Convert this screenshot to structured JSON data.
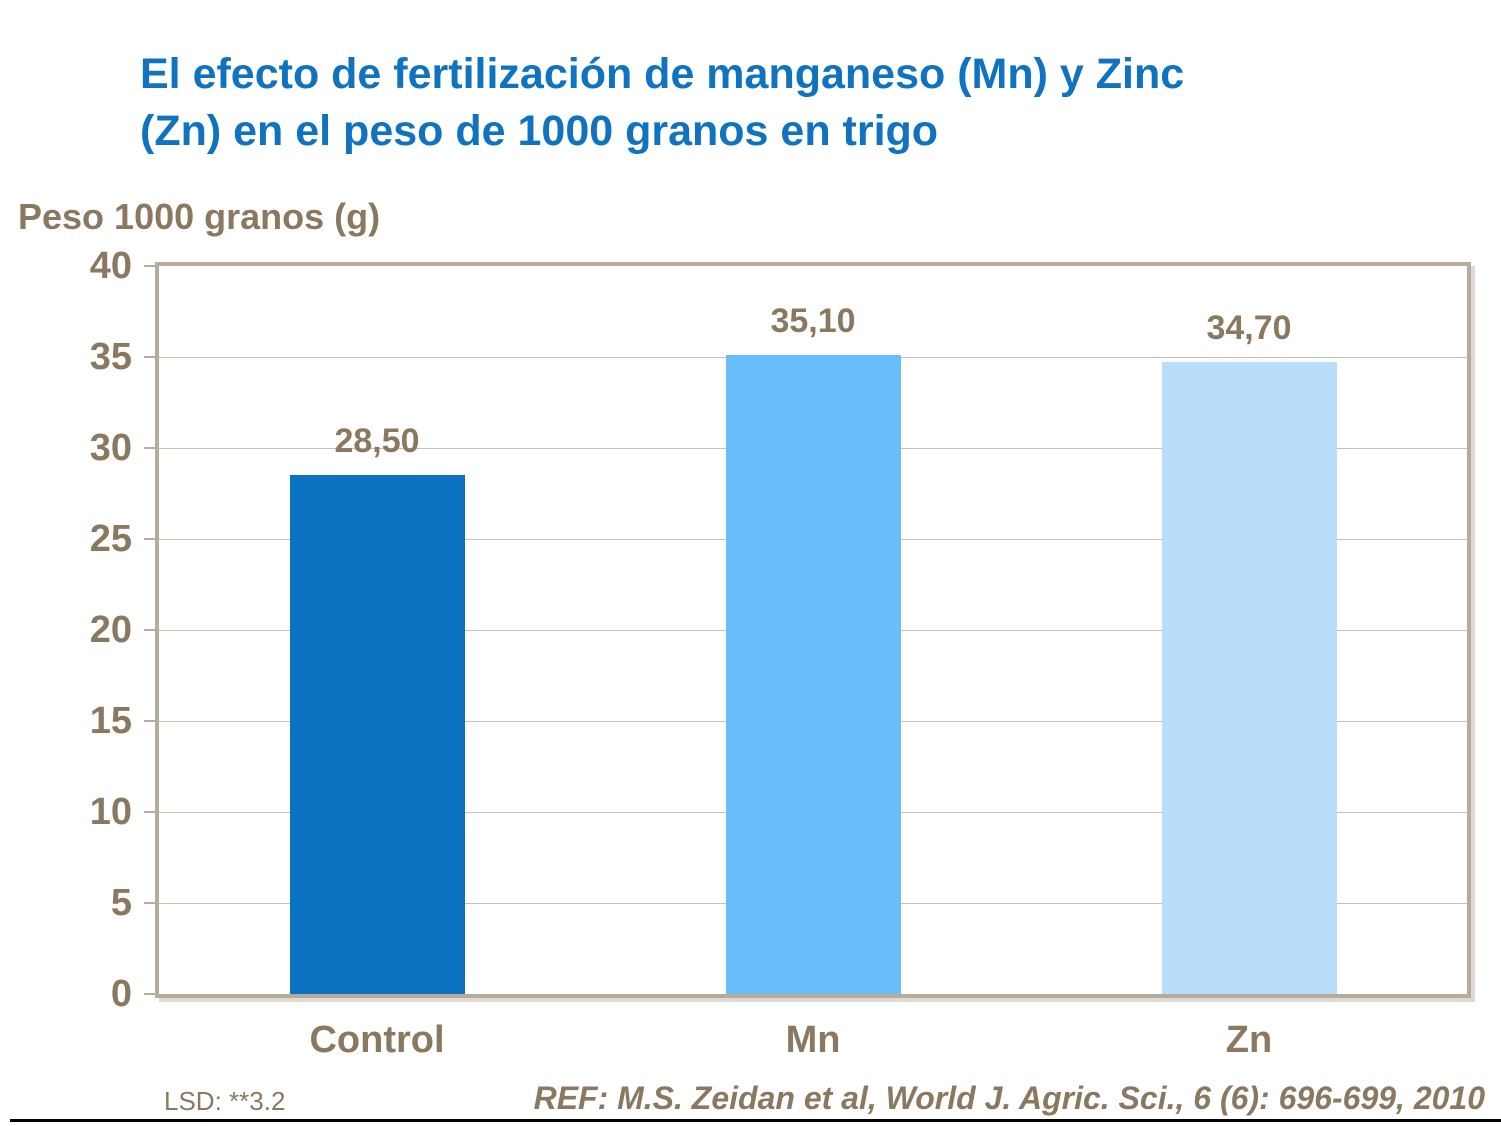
{
  "page": {
    "title_line1": "El efecto de fertilización de manganeso (Mn) y Zinc",
    "title_line2": "(Zn) en el peso de 1000 granos en trigo",
    "y_axis_title": "Peso 1000 granos (g)",
    "footer_lsd": "LSD: **3.2",
    "footer_ref": "REF: M.S. Zeidan et al, World J. Agric. Sci., 6 (6): 696-699, 2010"
  },
  "chart_data": {
    "type": "bar",
    "title": "El efecto de fertilización de manganeso (Mn) y Zinc (Zn) en el peso de 1000 granos en trigo",
    "xlabel": "",
    "ylabel": "Peso 1000 granos (g)",
    "categories": [
      "Control",
      "Mn",
      "Zn"
    ],
    "values": [
      28.5,
      35.1,
      34.7
    ],
    "value_labels": [
      "28,50",
      "35,10",
      "34,70"
    ],
    "bar_colors": [
      "#0b72c1",
      "#69bdfb",
      "#b8defb"
    ],
    "ylim": [
      0,
      40
    ],
    "yticks": [
      0,
      5,
      10,
      15,
      20,
      25,
      30,
      35,
      40
    ],
    "grid": true,
    "legend_position": "none",
    "annotations": [
      "LSD: **3.2",
      "REF: M.S. Zeidan et al, World J. Agric. Sci., 6 (6): 696-699, 2010"
    ]
  },
  "colors": {
    "title_blue": "#0f73c0",
    "text_brown": "#8a7860",
    "plot_border": "#b6ac9c",
    "gridline": "#c8c0b3",
    "bottom_rule": "#000000"
  }
}
